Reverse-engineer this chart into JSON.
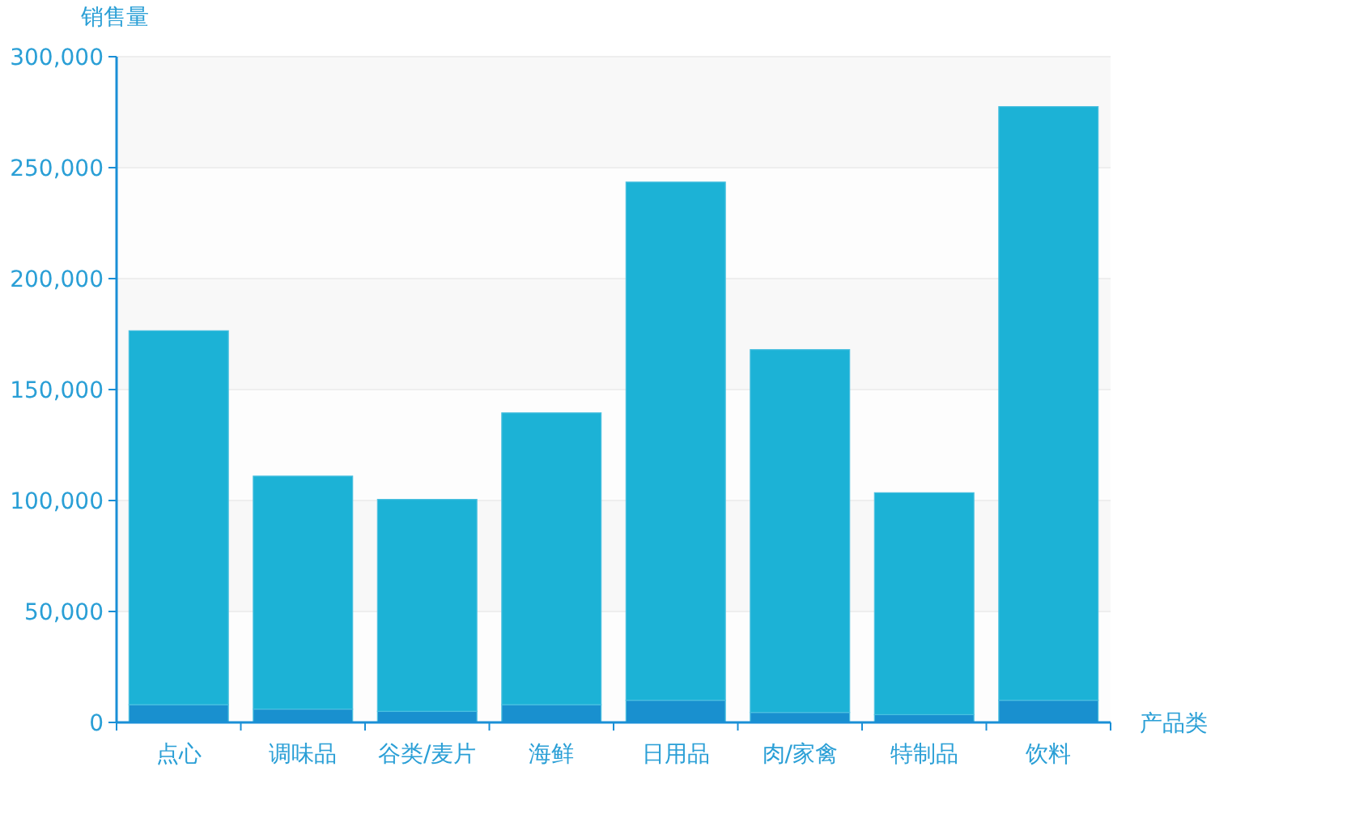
{
  "chart_data": {
    "type": "bar",
    "stacked": true,
    "xlabel": "产品类",
    "ylabel": "销售量",
    "categories": [
      "点心",
      "调味品",
      "谷类/麦片",
      "海鲜",
      "日用品",
      "肉/家禽",
      "特制品",
      "饮料"
    ],
    "series": [
      {
        "color": "#1990cf",
        "values": [
          8000,
          6000,
          5000,
          8000,
          10000,
          4500,
          3500,
          10000
        ]
      },
      {
        "color": "#1cb2d6",
        "values": [
          168500,
          105000,
          95500,
          131500,
          233500,
          163500,
          100000,
          267500
        ]
      }
    ],
    "ylim": [
      0,
      300000
    ],
    "yticks": [
      {
        "value": 0,
        "label": "0"
      },
      {
        "value": 50000,
        "label": "50,000"
      },
      {
        "value": 100000,
        "label": "100,000"
      },
      {
        "value": 150000,
        "label": "150,000"
      },
      {
        "value": 200000,
        "label": "200,000"
      },
      {
        "value": 250000,
        "label": "250,000"
      },
      {
        "value": 300000,
        "label": "300,000"
      }
    ],
    "grid": "y"
  }
}
